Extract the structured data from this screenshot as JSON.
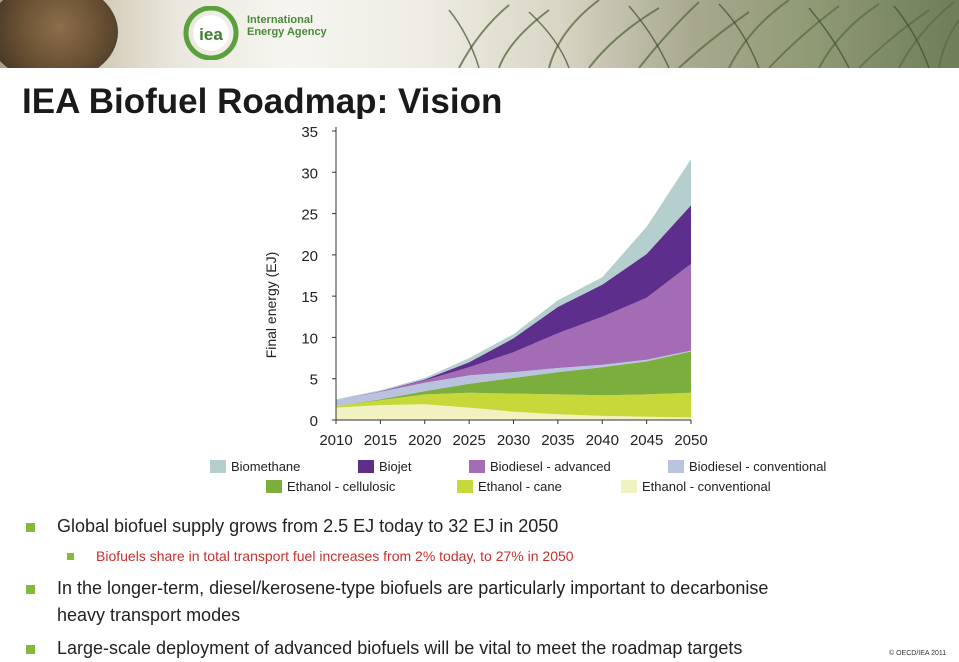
{
  "header": {
    "logo_label": "iea",
    "org_name_line1": "International",
    "org_name_line2": "Energy Agency"
  },
  "slide": {
    "title": "IEA Biofuel Roadmap: Vision"
  },
  "chart_data": {
    "type": "area",
    "title": "",
    "xlabel": "",
    "ylabel": "Final energy (EJ)",
    "x": [
      2010,
      2015,
      2020,
      2025,
      2030,
      2035,
      2040,
      2045,
      2050
    ],
    "xticks": [
      "2010",
      "2015",
      "2020",
      "2025",
      "2030",
      "2035",
      "2040",
      "2045",
      "2050"
    ],
    "yticks": [
      "0",
      "5",
      "10",
      "15",
      "20",
      "25",
      "30",
      "35"
    ],
    "ylim": [
      0,
      35
    ],
    "grid": false,
    "legend_position": "bottom",
    "series": [
      {
        "name": "Ethanol - conventional",
        "color": "#f2f1c2",
        "values": [
          1.5,
          1.8,
          1.9,
          1.5,
          1.0,
          0.7,
          0.5,
          0.4,
          0.3
        ]
      },
      {
        "name": "Ethanol - cane",
        "color": "#c7d93a",
        "values": [
          0.2,
          0.6,
          1.2,
          1.8,
          2.2,
          2.4,
          2.5,
          2.7,
          3.0
        ]
      },
      {
        "name": "Ethanol - cellulosic",
        "color": "#7cae3e",
        "values": [
          0.0,
          0.1,
          0.4,
          1.1,
          1.9,
          2.7,
          3.4,
          4.0,
          5.0
        ]
      },
      {
        "name": "Biodiesel - conventional",
        "color": "#b9c3de",
        "values": [
          0.7,
          0.9,
          1.0,
          1.0,
          0.7,
          0.5,
          0.3,
          0.2,
          0.1
        ]
      },
      {
        "name": "Biodiesel - advanced",
        "color": "#a36cb5",
        "values": [
          0.0,
          0.1,
          0.3,
          1.0,
          2.4,
          4.2,
          5.8,
          7.5,
          10.5
        ]
      },
      {
        "name": "Biojet",
        "color": "#5e2e8c",
        "values": [
          0.0,
          0.0,
          0.1,
          0.6,
          1.7,
          3.2,
          3.9,
          5.3,
          7.1
        ]
      },
      {
        "name": "Biomethane",
        "color": "#b5cfcf",
        "values": [
          0.1,
          0.1,
          0.2,
          0.5,
          0.5,
          0.8,
          0.9,
          3.3,
          5.6
        ]
      }
    ],
    "legend": [
      [
        "Biomethane",
        "Biojet",
        "Biodiesel - advanced",
        "Biodiesel - conventional"
      ],
      [
        "Ethanol - cellulosic",
        "Ethanol - cane",
        "Ethanol - conventional"
      ]
    ]
  },
  "bullets": [
    {
      "level": 1,
      "text": "Global biofuel supply grows from 2.5 EJ today to 32 EJ in 2050"
    },
    {
      "level": 2,
      "text": "Biofuels share in total transport fuel increases from 2% today, to 27% in 2050"
    },
    {
      "level": 1,
      "text": "In the longer-term, diesel/kerosene-type biofuels are particularly important to decarbonise"
    },
    {
      "level": 0,
      "text": "heavy transport modes"
    },
    {
      "level": 1,
      "text": "Large-scale deployment of advanced biofuels will be vital to meet the roadmap targets"
    }
  ],
  "footer": {
    "copyright": "© OECD/IEA 2011"
  }
}
